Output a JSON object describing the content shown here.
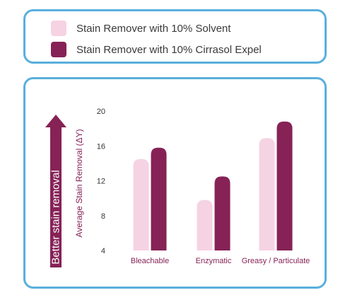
{
  "legend": {
    "items": [
      {
        "label": "Stain Remover with 10% Solvent",
        "color": "#f6d3e3"
      },
      {
        "label": "Stain Remover with 10% Cirrasol Expel",
        "color": "#862256"
      }
    ]
  },
  "side_arrow": {
    "label": "Better stain removal",
    "color": "#862256"
  },
  "chart_data": {
    "type": "bar",
    "categories": [
      "Bleachable",
      "Enzymatic",
      "Greasy / Particulate"
    ],
    "series": [
      {
        "name": "Stain Remover with 10% Solvent",
        "values": [
          14.5,
          9.8,
          16.9
        ],
        "color": "#f6d3e3"
      },
      {
        "name": "Stain Remover with 10% Cirrasol Expel",
        "values": [
          15.8,
          12.5,
          18.8
        ],
        "color": "#862256"
      }
    ],
    "ylabel": "Average Stain Removal (ΔY)",
    "ylim": [
      4,
      20
    ],
    "yticks": [
      4,
      8,
      12,
      16,
      20
    ],
    "grid": false,
    "legend_position": "top"
  }
}
